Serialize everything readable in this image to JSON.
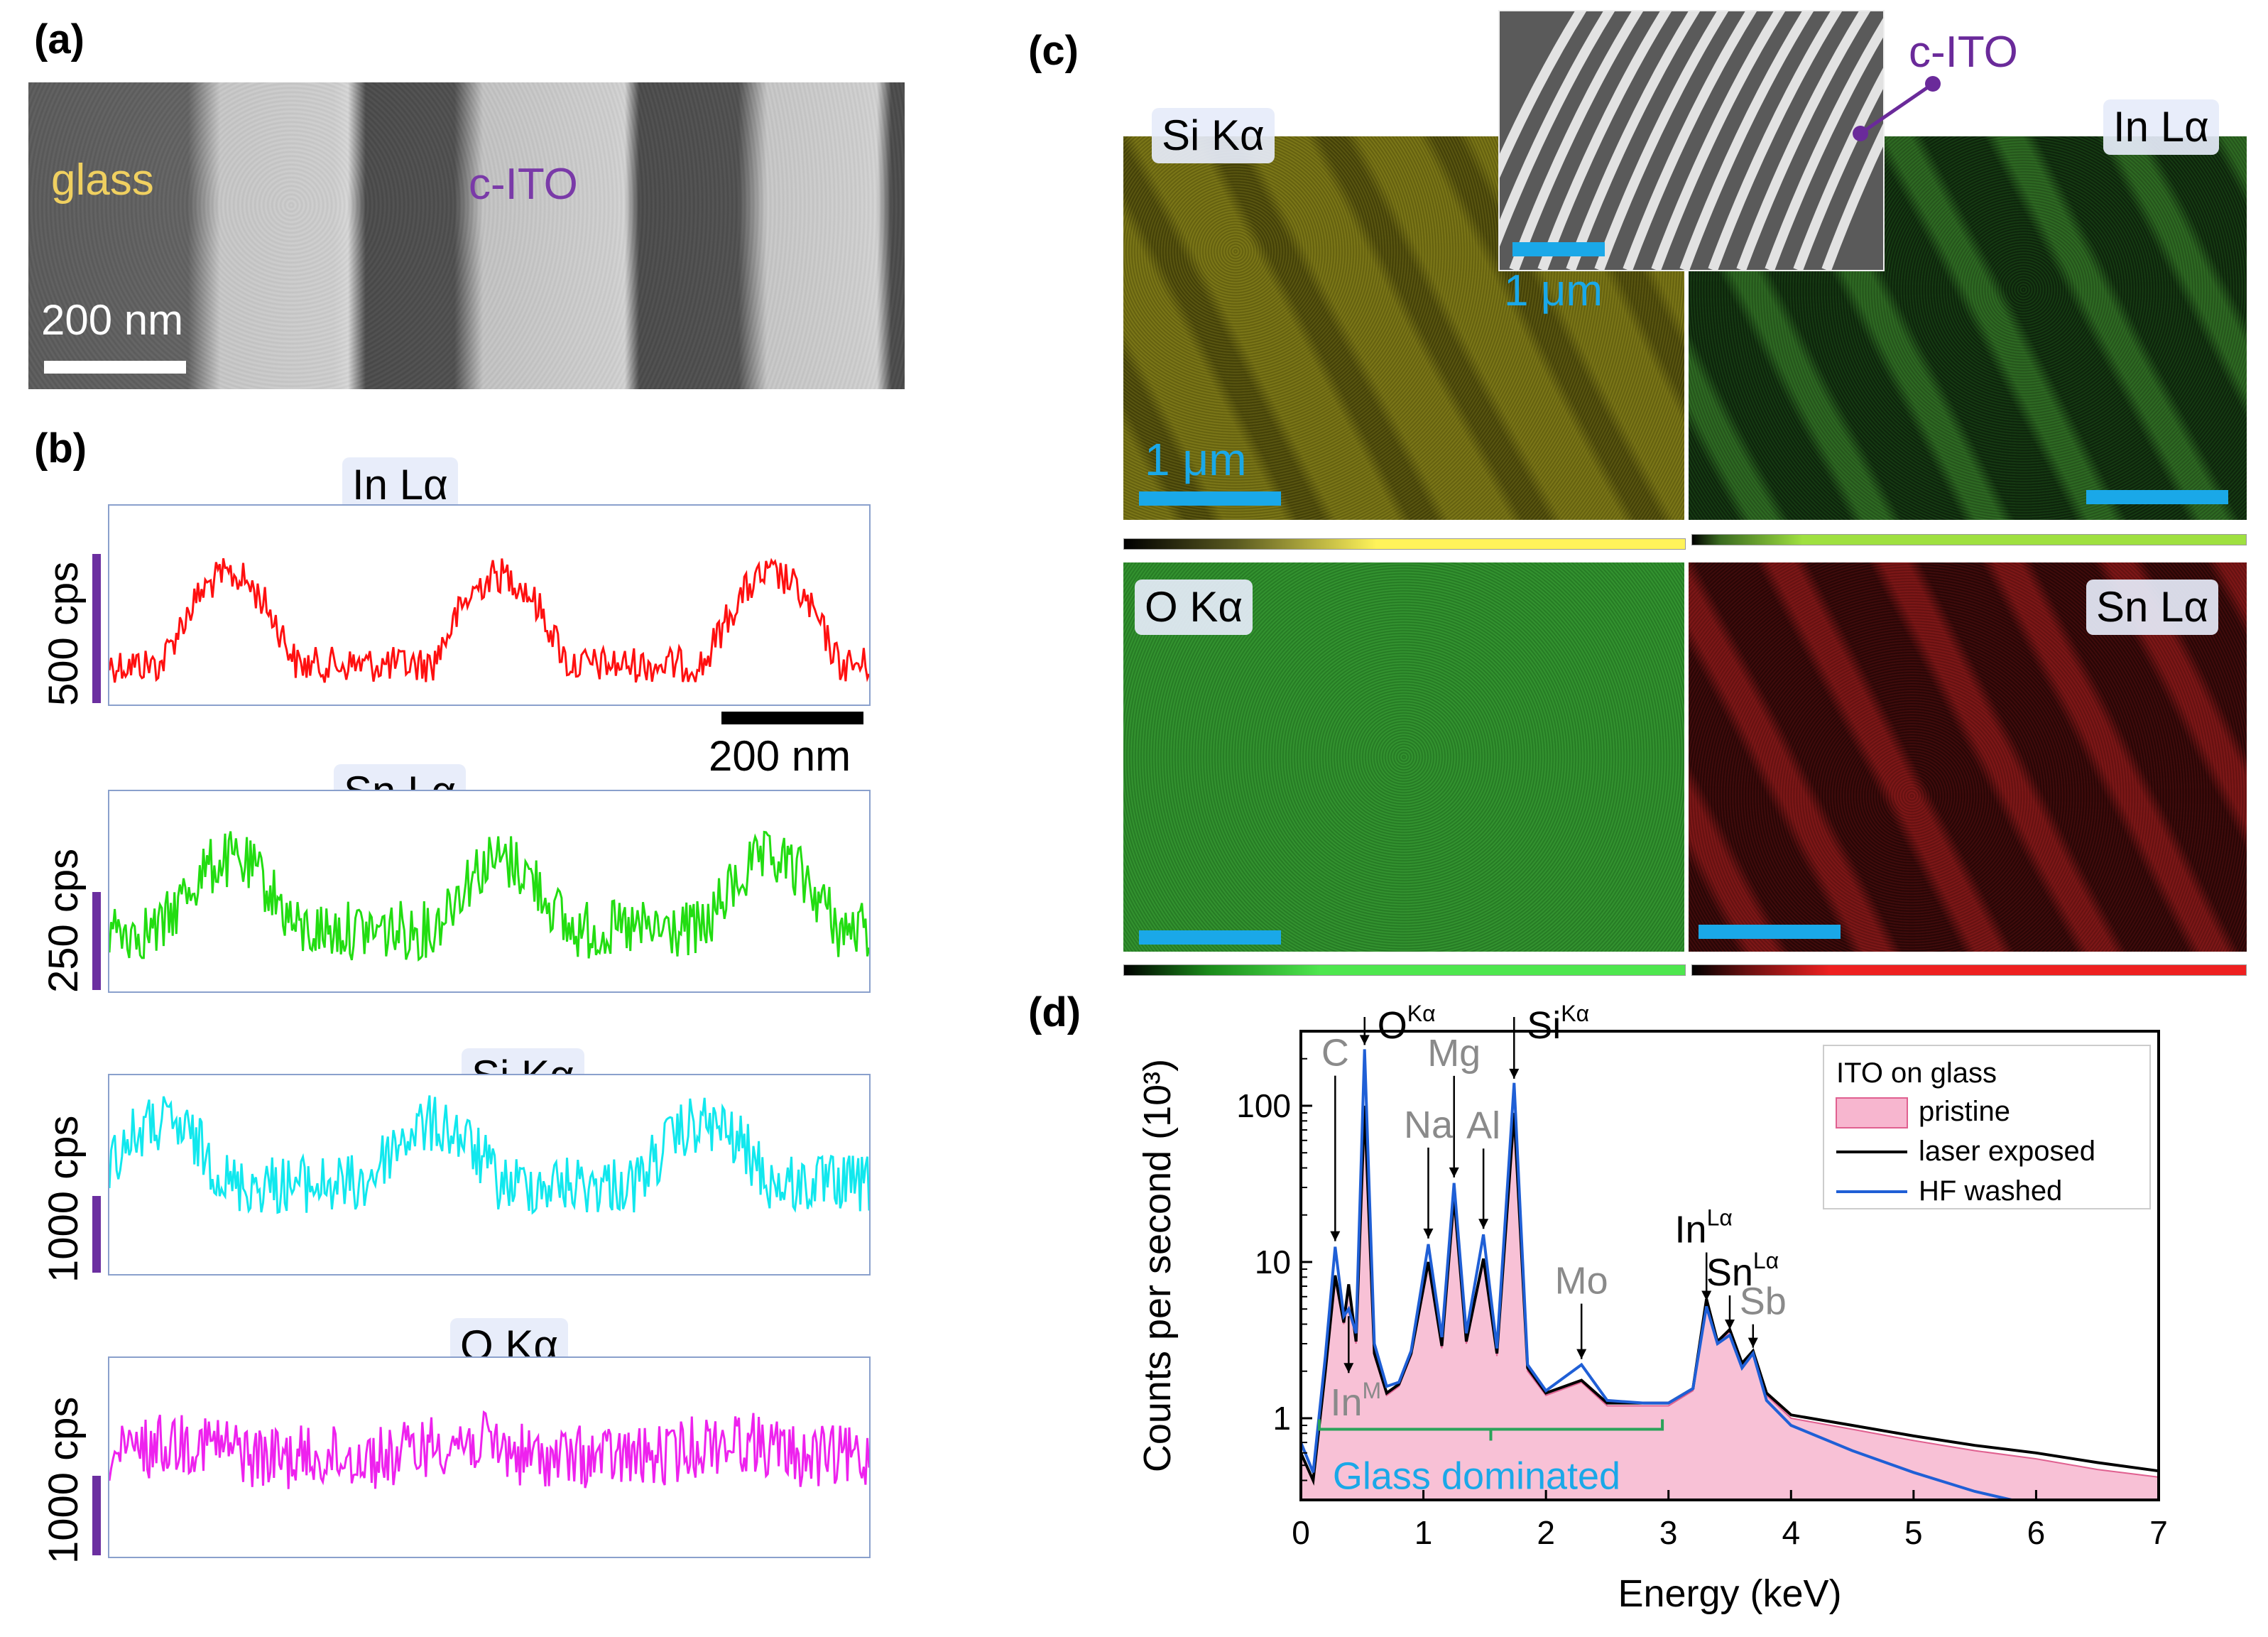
{
  "panels": {
    "a": "(a)",
    "b": "(b)",
    "c": "(c)",
    "d": "(d)"
  },
  "panel_a": {
    "glass_label": "glass",
    "ito_label": "c-ITO",
    "scale_label": "200 nm",
    "colors": {
      "glass_text": "#f0d060",
      "ito_text": "#7a3aa8",
      "stripe_light": "#d2d2d2",
      "stripe_dark": "#505050"
    }
  },
  "panel_b": {
    "traces": [
      {
        "label": "In Lα",
        "unit": "500 cps",
        "color": "#ff1010"
      },
      {
        "label": "Sn Lα",
        "unit": "250 cps",
        "color": "#22dd11"
      },
      {
        "label": "Si Kα",
        "unit": "1000 cps",
        "color": "#11e8ee"
      },
      {
        "label": "O Kα",
        "unit": "1000 cps",
        "color": "#ee22ee"
      }
    ],
    "scale_label": "200 nm"
  },
  "panel_c": {
    "maps": [
      {
        "label": "Si Kα",
        "color": "#b8b040",
        "scale_label": "1 μm"
      },
      {
        "label": "In Lα",
        "color": "#3c9a2c",
        "scale_label": ""
      },
      {
        "label": "O Kα",
        "color": "#3aa03a",
        "scale_label": ""
      },
      {
        "label": "Sn Lα",
        "color": "#b02020",
        "scale_label": ""
      }
    ],
    "inset": {
      "label": "c-ITO",
      "scale_label": "1 μm"
    },
    "scale_color": "#1aa8e8"
  },
  "chart_data": {
    "type": "line",
    "title": "",
    "xlabel": "Energy (keV)",
    "ylabel": "Counts per second (10³)",
    "xlim": [
      0,
      7
    ],
    "ylim": [
      0.3,
      300
    ],
    "yscale": "log",
    "x_ticks": [
      "0",
      "1",
      "2",
      "3",
      "4",
      "5",
      "6",
      "7"
    ],
    "y_ticks": [
      "1",
      "10",
      "100"
    ],
    "legend": {
      "title": "ITO on glass",
      "position": "top-right",
      "entries": [
        "pristine",
        "laser exposed",
        "HF washed"
      ]
    },
    "series": [
      {
        "name": "pristine",
        "color": "#f4a8c8",
        "x": [
          0.0,
          0.1,
          0.2,
          0.28,
          0.35,
          0.39,
          0.45,
          0.52,
          0.6,
          0.7,
          0.8,
          0.9,
          1.04,
          1.15,
          1.25,
          1.35,
          1.49,
          1.6,
          1.74,
          1.85,
          2.0,
          2.29,
          2.5,
          2.8,
          3.0,
          3.2,
          3.31,
          3.4,
          3.5,
          3.6,
          3.69,
          3.8,
          4.0,
          4.5,
          5.0,
          5.5,
          6.0,
          6.5,
          7.0
        ],
        "y": [
          0.6,
          0.4,
          2.0,
          8.0,
          4.0,
          7.0,
          3.0,
          95.0,
          2.5,
          1.4,
          1.6,
          2.5,
          9.5,
          2.8,
          25.0,
          3.0,
          10.0,
          2.5,
          85.0,
          2.0,
          1.4,
          1.7,
          1.2,
          1.2,
          1.2,
          1.5,
          5.5,
          3.0,
          3.6,
          2.2,
          2.6,
          1.4,
          1.0,
          0.85,
          0.72,
          0.62,
          0.55,
          0.47,
          0.42
        ]
      },
      {
        "name": "laser exposed",
        "color": "#000000",
        "x": [
          0.0,
          0.1,
          0.2,
          0.28,
          0.35,
          0.39,
          0.45,
          0.52,
          0.6,
          0.7,
          0.8,
          0.9,
          1.04,
          1.15,
          1.25,
          1.35,
          1.49,
          1.6,
          1.74,
          1.85,
          2.0,
          2.29,
          2.5,
          2.8,
          3.0,
          3.2,
          3.31,
          3.4,
          3.5,
          3.6,
          3.69,
          3.8,
          4.0,
          4.5,
          5.0,
          5.5,
          6.0,
          6.5,
          7.0
        ],
        "y": [
          0.6,
          0.4,
          2.0,
          8.2,
          4.1,
          7.2,
          3.1,
          100.0,
          2.6,
          1.45,
          1.65,
          2.6,
          10.0,
          2.9,
          26.0,
          3.1,
          10.5,
          2.6,
          90.0,
          2.1,
          1.45,
          1.75,
          1.25,
          1.25,
          1.25,
          1.55,
          5.8,
          3.1,
          3.7,
          2.25,
          2.7,
          1.45,
          1.05,
          0.9,
          0.77,
          0.67,
          0.6,
          0.52,
          0.46
        ]
      },
      {
        "name": "HF washed",
        "color": "#1f5fd6",
        "x": [
          0.0,
          0.1,
          0.2,
          0.28,
          0.35,
          0.39,
          0.45,
          0.52,
          0.6,
          0.7,
          0.8,
          0.9,
          1.04,
          1.15,
          1.25,
          1.35,
          1.49,
          1.6,
          1.74,
          1.85,
          2.0,
          2.29,
          2.5,
          2.8,
          3.0,
          3.2,
          3.31,
          3.4,
          3.5,
          3.6,
          3.69,
          3.8,
          4.0,
          4.5,
          5.0,
          5.5,
          5.8
        ],
        "y": [
          0.7,
          0.45,
          2.5,
          12.5,
          4.5,
          5.0,
          3.5,
          230.0,
          3.0,
          1.6,
          1.7,
          2.7,
          13.0,
          3.3,
          32.0,
          3.5,
          15.0,
          2.8,
          140.0,
          2.2,
          1.5,
          2.2,
          1.3,
          1.25,
          1.25,
          1.55,
          5.2,
          3.0,
          3.4,
          2.1,
          2.6,
          1.3,
          0.9,
          0.62,
          0.45,
          0.34,
          0.3
        ]
      }
    ],
    "annotations": [
      {
        "text": "C",
        "x": 0.28
      },
      {
        "text": "In",
        "sup": "M",
        "x": 0.39
      },
      {
        "text": "O",
        "sup": "Kα",
        "x": 0.52
      },
      {
        "text": "Na",
        "x": 1.04
      },
      {
        "text": "Mg",
        "x": 1.25
      },
      {
        "text": "Al",
        "x": 1.49
      },
      {
        "text": "Si",
        "sup": "Kα",
        "x": 1.74
      },
      {
        "text": "Mo",
        "x": 2.29
      },
      {
        "text": "In",
        "sup": "Lα",
        "x": 3.31
      },
      {
        "text": "Sn",
        "sup": "Lα",
        "x": 3.5
      },
      {
        "text": "Sb",
        "x": 3.69
      }
    ],
    "region_label": "Glass dominated",
    "region": [
      0.15,
      2.95
    ]
  }
}
